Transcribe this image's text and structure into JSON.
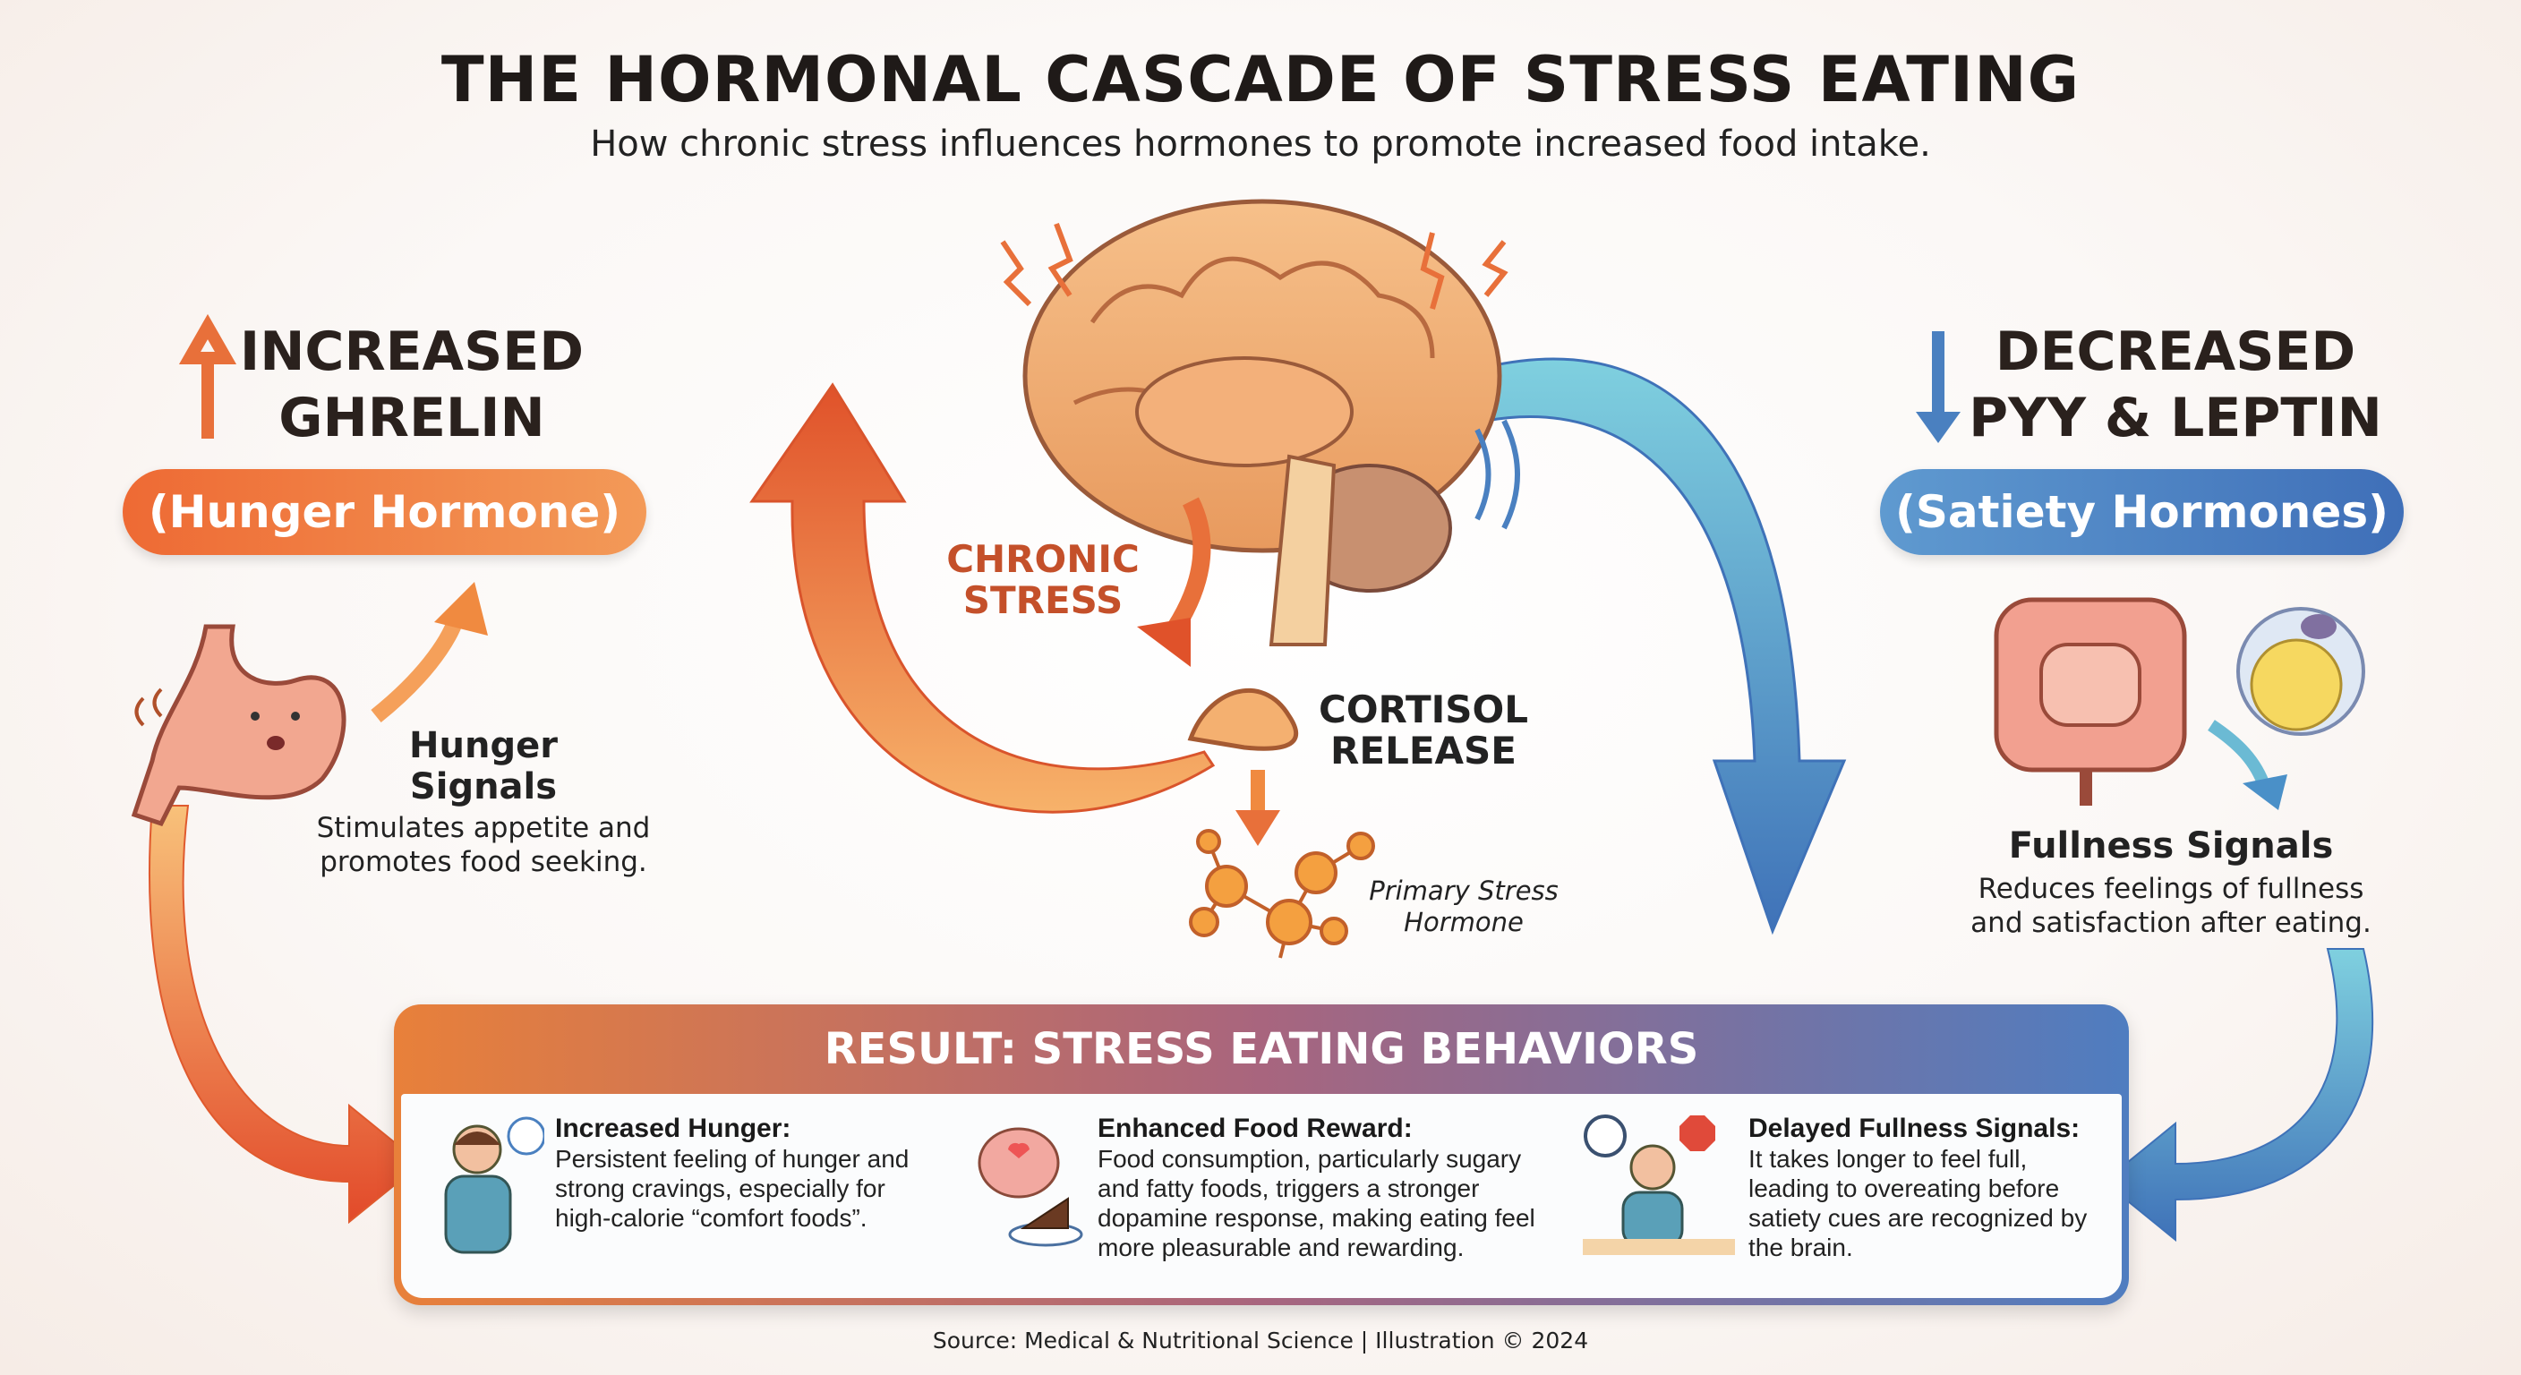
{
  "header": {
    "title": "THE HORMONAL CASCADE OF STRESS EATING",
    "subtitle": "How chronic stress influences hormones to promote increased food intake."
  },
  "left": {
    "heading_line1": "INCREASED",
    "heading_line2": "GHRELIN",
    "pill": "(Hunger Hormone)",
    "signal_title_line1": "Hunger",
    "signal_title_line2": "Signals",
    "signal_desc_line1": "Stimulates appetite and",
    "signal_desc_line2": "promotes food seeking.",
    "color": "#e8703a"
  },
  "right": {
    "heading_line1": "DECREASED",
    "heading_line2": "PYY & LEPTIN",
    "pill": "(Satiety Hormones)",
    "signal_title": "Fullness Signals",
    "signal_desc_line1": "Reduces feelings of fullness",
    "signal_desc_line2": "and satisfaction after eating.",
    "color": "#4a80c0"
  },
  "center": {
    "stress_line1": "CHRONIC",
    "stress_line2": "STRESS",
    "cortisol_line1": "CORTISOL",
    "cortisol_line2": "RELEASE",
    "hormone_line1": "Primary Stress",
    "hormone_line2": "Hormone"
  },
  "result": {
    "title": "RESULT: STRESS EATING BEHAVIORS",
    "items": [
      {
        "title": "Increased Hunger:",
        "lines": [
          "Persistent feeling of hunger and",
          "strong cravings, especially for",
          "high-calorie “comfort foods”."
        ],
        "icon": "hungry-person-icon"
      },
      {
        "title": "Enhanced Food Reward:",
        "lines": [
          "Food consumption, particularly sugary",
          "and fatty foods, triggers a stronger",
          "dopamine response, making eating feel",
          "more pleasurable and rewarding."
        ],
        "icon": "brain-cake-icon"
      },
      {
        "title": "Delayed Fullness Signals:",
        "lines": [
          "It takes longer to feel full,",
          "leading to overeating before",
          "satiety cues are recognized by",
          "the brain."
        ],
        "icon": "eating-person-stop-icon"
      }
    ]
  },
  "footer": {
    "source": "Source: Medical & Nutritional Science | Illustration © 2024"
  }
}
